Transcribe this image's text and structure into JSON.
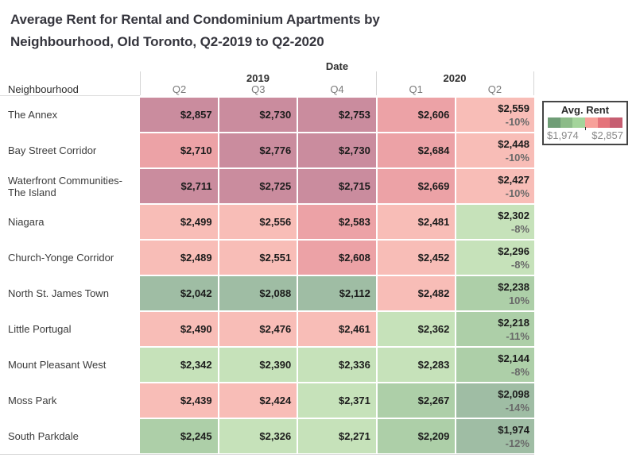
{
  "title": "Average Rent for Rental and Condominium Apartments by Neighbourhood, Old Toronto, Q2-2019 to Q2-2020",
  "header": {
    "date_label": "Date",
    "neighbourhood_label": "Neighbourhood",
    "year_groups": [
      {
        "label": "2019",
        "quarters": [
          "Q2",
          "Q3",
          "Q4"
        ]
      },
      {
        "label": "2020",
        "quarters": [
          "Q1",
          "Q2"
        ]
      }
    ]
  },
  "legend": {
    "title": "Avg. Rent",
    "min_label": "$1,974",
    "max_label": "$2,857",
    "colors": [
      "#6f9d76",
      "#8cbb88",
      "#a4d49b",
      "#f7a099",
      "#e4737a",
      "#c65e71"
    ]
  },
  "chart_data": {
    "type": "heatmap",
    "title": "Average Rent for Rental and Condominium Apartments by Neighbourhood, Old Toronto, Q2-2019 to Q2-2020",
    "columns": [
      "2019 Q2",
      "2019 Q3",
      "2019 Q4",
      "2020 Q1",
      "2020 Q2"
    ],
    "rows": [
      {
        "neighbourhood": "The Annex",
        "values": [
          2857,
          2730,
          2753,
          2606,
          2559
        ],
        "display": [
          "$2,857",
          "$2,730",
          "$2,753",
          "$2,606",
          "$2,559"
        ],
        "pct_change": "-10%"
      },
      {
        "neighbourhood": "Bay Street Corridor",
        "values": [
          2710,
          2776,
          2730,
          2684,
          2448
        ],
        "display": [
          "$2,710",
          "$2,776",
          "$2,730",
          "$2,684",
          "$2,448"
        ],
        "pct_change": "-10%"
      },
      {
        "neighbourhood": "Waterfront Communities-The Island",
        "values": [
          2711,
          2725,
          2715,
          2669,
          2427
        ],
        "display": [
          "$2,711",
          "$2,725",
          "$2,715",
          "$2,669",
          "$2,427"
        ],
        "pct_change": "-10%"
      },
      {
        "neighbourhood": "Niagara",
        "values": [
          2499,
          2556,
          2583,
          2481,
          2302
        ],
        "display": [
          "$2,499",
          "$2,556",
          "$2,583",
          "$2,481",
          "$2,302"
        ],
        "pct_change": "-8%"
      },
      {
        "neighbourhood": "Church-Yonge Corridor",
        "values": [
          2489,
          2551,
          2608,
          2452,
          2296
        ],
        "display": [
          "$2,489",
          "$2,551",
          "$2,608",
          "$2,452",
          "$2,296"
        ],
        "pct_change": "-8%"
      },
      {
        "neighbourhood": "North St. James Town",
        "values": [
          2042,
          2088,
          2112,
          2482,
          2238
        ],
        "display": [
          "$2,042",
          "$2,088",
          "$2,112",
          "$2,482",
          "$2,238"
        ],
        "pct_change": "10%"
      },
      {
        "neighbourhood": "Little Portugal",
        "values": [
          2490,
          2476,
          2461,
          2362,
          2218
        ],
        "display": [
          "$2,490",
          "$2,476",
          "$2,461",
          "$2,362",
          "$2,218"
        ],
        "pct_change": "-11%"
      },
      {
        "neighbourhood": "Mount Pleasant West",
        "values": [
          2342,
          2390,
          2336,
          2283,
          2144
        ],
        "display": [
          "$2,342",
          "$2,390",
          "$2,336",
          "$2,283",
          "$2,144"
        ],
        "pct_change": "-8%"
      },
      {
        "neighbourhood": "Moss Park",
        "values": [
          2439,
          2424,
          2371,
          2267,
          2098
        ],
        "display": [
          "$2,439",
          "$2,424",
          "$2,371",
          "$2,267",
          "$2,098"
        ],
        "pct_change": "-14%"
      },
      {
        "neighbourhood": "South Parkdale",
        "values": [
          2245,
          2326,
          2271,
          2209,
          1974
        ],
        "display": [
          "$2,245",
          "$2,326",
          "$2,271",
          "$2,209",
          "$1,974"
        ],
        "pct_change": "-12%"
      }
    ],
    "color_scale": {
      "min": 1974,
      "max": 2857,
      "thresholds": [
        2121.2,
        2268.3,
        2415.5,
        2562.7,
        2710.5
      ],
      "cell_colors": [
        "#9fbda4",
        "#adcfa8",
        "#c6e2ba",
        "#f8bdb7",
        "#eca2a6",
        "#ca8c9e"
      ]
    },
    "legend_position": "right"
  }
}
